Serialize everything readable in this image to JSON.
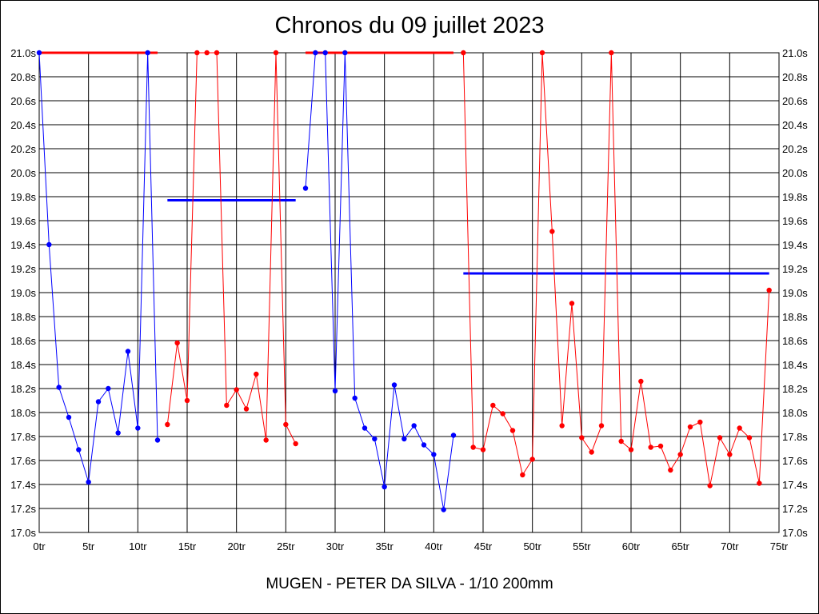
{
  "chart_data": {
    "type": "line",
    "title": "Chronos du 09 juillet 2023",
    "caption": "MUGEN - PETER DA SILVA - 1/10 200mm",
    "x_ticks": [
      "0tr",
      "5tr",
      "10tr",
      "15tr",
      "20tr",
      "25tr",
      "30tr",
      "35tr",
      "40tr",
      "45tr",
      "50tr",
      "55tr",
      "60tr",
      "65tr",
      "70tr",
      "75tr"
    ],
    "y_ticks": [
      "17.0s",
      "17.2s",
      "17.4s",
      "17.6s",
      "17.8s",
      "18.0s",
      "18.2s",
      "18.4s",
      "18.6s",
      "18.8s",
      "19.0s",
      "19.2s",
      "19.4s",
      "19.6s",
      "19.8s",
      "20.0s",
      "20.2s",
      "20.4s",
      "20.6s",
      "20.8s",
      "21.0s"
    ],
    "xlim": [
      0,
      75
    ],
    "ylim": [
      17.0,
      21.0
    ],
    "grid": true,
    "colors": {
      "blue": "#0000ff",
      "red": "#ff0000",
      "grid": "#000000"
    },
    "segments": [
      {
        "color": "blue",
        "x": [
          0,
          1,
          2,
          3,
          4,
          5,
          6,
          7,
          8,
          9,
          10,
          11,
          12
        ],
        "y": [
          21.0,
          19.4,
          18.21,
          17.96,
          17.69,
          17.42,
          18.09,
          18.2,
          17.83,
          18.51,
          17.87,
          21.0,
          17.77
        ]
      },
      {
        "color": "red",
        "x": [
          13,
          14,
          15,
          16,
          17,
          18,
          19,
          20,
          21,
          22,
          23,
          24,
          25,
          26
        ],
        "y": [
          17.9,
          18.58,
          18.1,
          21.0,
          21.0,
          21.0,
          18.06,
          18.19,
          18.03,
          18.32,
          17.77,
          21.0,
          17.9,
          17.74
        ]
      },
      {
        "color": "blue",
        "x": [
          27,
          28,
          29,
          30,
          31,
          32,
          33,
          34,
          35,
          36,
          37,
          38,
          39,
          40,
          41,
          42
        ],
        "y": [
          19.87,
          21.0,
          21.0,
          18.18,
          21.0,
          18.12,
          17.87,
          17.78,
          17.38,
          18.23,
          17.78,
          17.89,
          17.73,
          17.65,
          17.19,
          17.81
        ]
      },
      {
        "color": "red",
        "x": [
          43,
          44,
          45,
          46,
          47,
          48,
          49,
          50,
          51,
          52,
          53,
          54,
          55,
          56,
          57,
          58,
          59,
          60,
          61,
          62,
          63,
          64,
          65,
          66,
          67,
          68,
          69,
          70,
          71,
          72,
          73,
          74
        ],
        "y": [
          21.0,
          17.71,
          17.69,
          18.06,
          17.99,
          17.85,
          17.48,
          17.61,
          21.0,
          19.51,
          17.89,
          18.91,
          17.79,
          17.67,
          17.89,
          21.0,
          17.76,
          17.69,
          18.26,
          17.71,
          17.72,
          17.52,
          17.65,
          17.88,
          17.92,
          17.39,
          17.79,
          17.65,
          17.87,
          17.79,
          17.41,
          19.02
        ]
      }
    ],
    "reference_lines": [
      {
        "color": "red",
        "x": [
          0,
          12
        ],
        "y": 21.0
      },
      {
        "color": "blue",
        "x": [
          13,
          26
        ],
        "y": 19.77
      },
      {
        "color": "red",
        "x": [
          27,
          42
        ],
        "y": 21.0
      },
      {
        "color": "blue",
        "x": [
          43,
          74
        ],
        "y": 19.16
      }
    ]
  }
}
